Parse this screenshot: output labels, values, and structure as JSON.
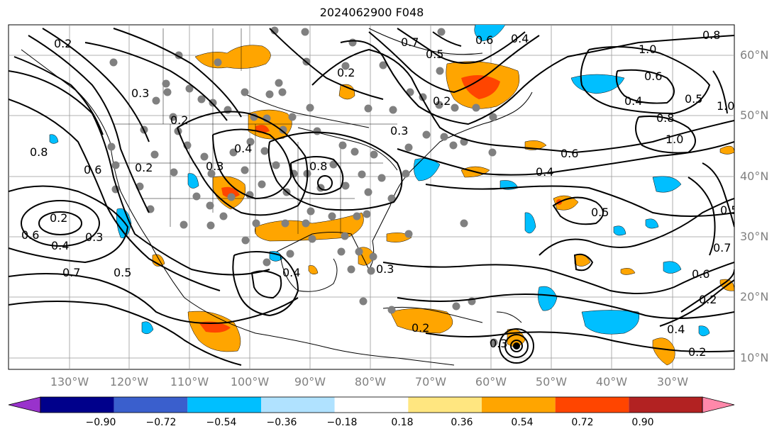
{
  "title": "2024062900 F048",
  "lat_labels": [
    "60°N",
    "50°N",
    "40°N",
    "30°N",
    "20°N",
    "10°N"
  ],
  "lon_labels": [
    "130°W",
    "120°W",
    "110°W",
    "100°W",
    "90°W",
    "80°W",
    "70°W",
    "60°W",
    "50°W",
    "40°W",
    "30°W"
  ],
  "contour_labels": [
    "0.2",
    "0.3",
    "0.4",
    "0.5",
    "0.6",
    "0.7",
    "0.8",
    "1.0"
  ],
  "colorbar": {
    "ticks": [
      "−0.90",
      "−0.72",
      "−0.54",
      "−0.36",
      "−0.18",
      "0.18",
      "0.36",
      "0.54",
      "0.72",
      "0.90"
    ],
    "colors": [
      "#9932cc",
      "#00008b",
      "#3a5fcd",
      "#00bfff",
      "#b0e2ff",
      "#ffffff",
      "#ffe680",
      "#ffa500",
      "#ff4500",
      "#b22222",
      "#ff88aa"
    ]
  }
}
